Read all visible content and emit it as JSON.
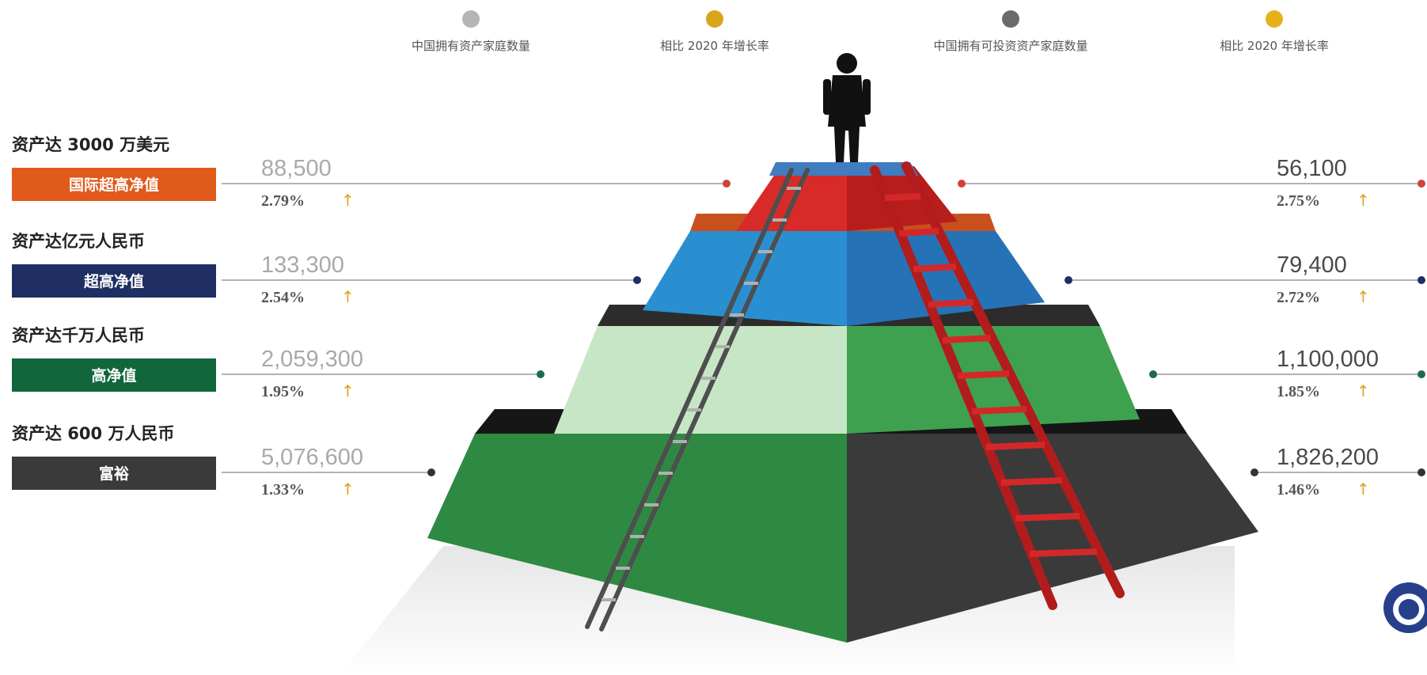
{
  "legend": [
    {
      "label": "中国拥有资产家庭数量",
      "color": "#b5b5b5"
    },
    {
      "label": "相比 2020 年增长率",
      "color": "#d9a51c"
    },
    {
      "label": "中国拥有可投资资产家庭数量",
      "color": "#6b6b6b"
    },
    {
      "label": "相比 2020 年增长率",
      "color": "#e8b11a"
    }
  ],
  "rate_arrow": "↑",
  "chart_data": {
    "type": "table",
    "columns": [
      "中国拥有资产家庭数量",
      "相比 2020 年增长率",
      "中国拥有可投资资产家庭数量",
      "相比 2020 年增长率"
    ],
    "tiers": [
      {
        "threshold": "资产达 3000 万美元",
        "label": "国际超高净值",
        "color": "#e05a1c",
        "total_households": "88,500",
        "total_growth": "2.79%",
        "investable_households": "56,100",
        "investable_growth": "2.75%"
      },
      {
        "threshold": "资产达亿元人民币",
        "label": "超高净值",
        "color": "#1f2f63",
        "total_households": "133,300",
        "total_growth": "2.54%",
        "investable_households": "79,400",
        "investable_growth": "2.72%"
      },
      {
        "threshold": "资产达千万人民币",
        "label": "高净值",
        "color": "#11663c",
        "total_households": "2,059,300",
        "total_growth": "1.95%",
        "investable_households": "1,100,000",
        "investable_growth": "1.85%"
      },
      {
        "threshold": "资产达 600 万人民币",
        "label": "富裕",
        "color": "#3a3a3a",
        "total_households": "5,076,600",
        "total_growth": "1.33%",
        "investable_households": "1,826,200",
        "investable_growth": "1.46%"
      }
    ],
    "tier_dot_colors": [
      "#d2413b",
      "#1f2f63",
      "#1e6b4a",
      "#333333"
    ]
  }
}
